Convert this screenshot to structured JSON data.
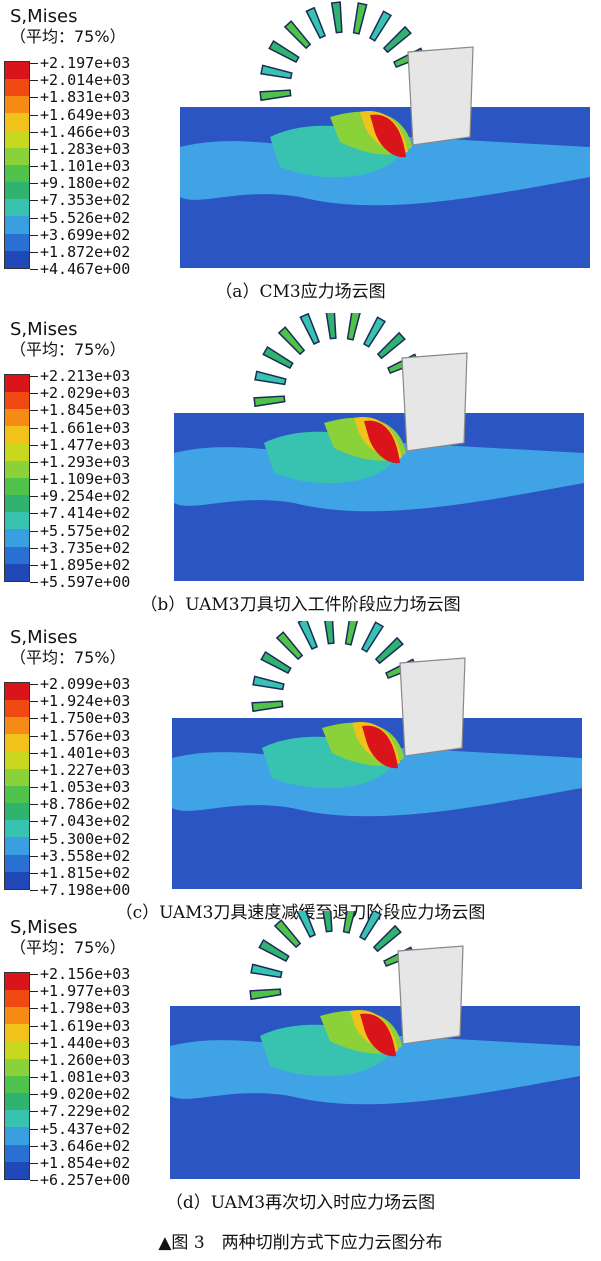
{
  "panels": [
    {
      "legend_title": "S,Mises",
      "legend_subtitle": "（平均：75%）",
      "ticks": [
        "+2.197e+03",
        "+2.014e+03",
        "+1.831e+03",
        "+1.649e+03",
        "+1.466e+03",
        "+1.283e+03",
        "+1.101e+03",
        "+9.180e+02",
        "+7.353e+02",
        "+5.526e+02",
        "+3.699e+02",
        "+1.872e+02",
        "+4.467e+00"
      ],
      "caption": "（a）CM3应力场云图"
    },
    {
      "legend_title": "S,Mises",
      "legend_subtitle": "（平均：75%）",
      "ticks": [
        "+2.213e+03",
        "+2.029e+03",
        "+1.845e+03",
        "+1.661e+03",
        "+1.477e+03",
        "+1.293e+03",
        "+1.109e+03",
        "+9.254e+02",
        "+7.414e+02",
        "+5.575e+02",
        "+3.735e+02",
        "+1.895e+02",
        "+5.597e+00"
      ],
      "caption": "（b）UAM3刀具切入工件阶段应力场云图"
    },
    {
      "legend_title": "S,Mises",
      "legend_subtitle": "（平均：75%）",
      "ticks": [
        "+2.099e+03",
        "+1.924e+03",
        "+1.750e+03",
        "+1.576e+03",
        "+1.401e+03",
        "+1.227e+03",
        "+1.053e+03",
        "+8.786e+02",
        "+7.043e+02",
        "+5.300e+02",
        "+3.558e+02",
        "+1.815e+02",
        "+7.198e+00"
      ],
      "caption": "（c）UAM3刀具速度减缓至退刀阶段应力场云图"
    },
    {
      "legend_title": "S,Mises",
      "legend_subtitle": "（平均：75%）",
      "ticks": [
        "+2.156e+03",
        "+1.977e+03",
        "+1.798e+03",
        "+1.619e+03",
        "+1.440e+03",
        "+1.260e+03",
        "+1.081e+03",
        "+9.020e+02",
        "+7.229e+02",
        "+5.437e+02",
        "+3.646e+02",
        "+1.854e+02",
        "+6.257e+00"
      ],
      "caption": "（d）UAM3再次切入时应力场云图"
    }
  ],
  "figure_caption": "▲图 3　两种切削方式下应力云图分布",
  "colormap": [
    "#d9141b",
    "#f04a12",
    "#f58a15",
    "#f0c21a",
    "#c8d820",
    "#8bd23a",
    "#4fc24b",
    "#2fb36f",
    "#38c3b0",
    "#3a9fe0",
    "#2a6fd2",
    "#2048b8"
  ]
}
